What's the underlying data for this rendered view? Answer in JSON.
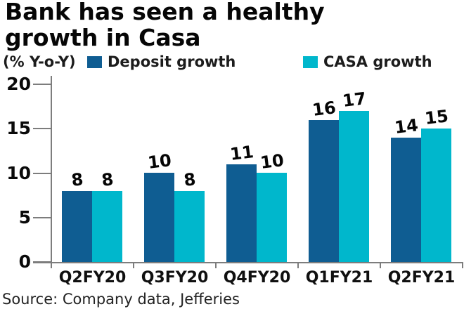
{
  "title": {
    "full": "Bank has seen a healthy growth in Casa",
    "lines": [
      "Bank has seen a healthy",
      "growth in Casa"
    ]
  },
  "legend": {
    "unit_label": "(% Y-o-Y)",
    "series": [
      {
        "label": "Deposit growth",
        "color": "#0f5d92"
      },
      {
        "label": "CASA growth",
        "color": "#00b7cc"
      }
    ]
  },
  "source": "Source: Company data, Jefferies",
  "chart_data": {
    "type": "bar",
    "title": "Bank has seen a healthy growth in Casa",
    "ylabel": "(% Y-o-Y)",
    "categories": [
      "Q2FY20",
      "Q3FY20",
      "Q4FY20",
      "Q1FY21",
      "Q2FY21"
    ],
    "series": [
      {
        "name": "Deposit growth",
        "color": "#0f5d92",
        "values": [
          8,
          10,
          11,
          16,
          14
        ]
      },
      {
        "name": "CASA growth",
        "color": "#00b7cc",
        "values": [
          8,
          8,
          10,
          17,
          15
        ]
      }
    ],
    "ylim": [
      0,
      20
    ],
    "yticks": [
      0,
      5,
      10,
      15,
      20
    ],
    "grid": false,
    "show_value_labels": true,
    "legend_position": "top",
    "axis_color": "#7d7d7d"
  }
}
